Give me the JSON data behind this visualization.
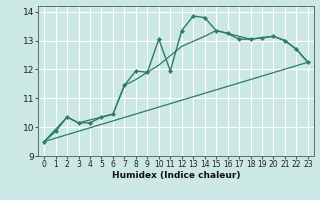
{
  "xlabel": "Humidex (Indice chaleur)",
  "bg_color": "#cce8e4",
  "grid_color": "#ffffff",
  "line_color": "#2d7a6a",
  "xlim": [
    -0.5,
    23.5
  ],
  "ylim": [
    9.0,
    14.2
  ],
  "xticks": [
    0,
    1,
    2,
    3,
    4,
    5,
    6,
    7,
    8,
    9,
    10,
    11,
    12,
    13,
    14,
    15,
    16,
    17,
    18,
    19,
    20,
    21,
    22,
    23
  ],
  "yticks": [
    9,
    10,
    11,
    12,
    13,
    14
  ],
  "line1_x": [
    0,
    1,
    2,
    3,
    4,
    5,
    6,
    7,
    8,
    9,
    10,
    11,
    12,
    13,
    14,
    15,
    16,
    17,
    18,
    19,
    20,
    21,
    22,
    23
  ],
  "line1_y": [
    9.5,
    9.85,
    10.35,
    10.15,
    10.15,
    10.35,
    10.45,
    11.45,
    11.95,
    11.9,
    13.05,
    11.95,
    13.35,
    13.85,
    13.8,
    13.35,
    13.25,
    13.05,
    13.05,
    13.1,
    13.15,
    13.0,
    12.7,
    12.25
  ],
  "line2_x": [
    0,
    23
  ],
  "line2_y": [
    9.5,
    12.25
  ],
  "line3_x": [
    0,
    2,
    3,
    5,
    6,
    7,
    8,
    9,
    10,
    12,
    14,
    15,
    18,
    19,
    20,
    21,
    22,
    23
  ],
  "line3_y": [
    9.5,
    10.35,
    10.15,
    10.35,
    10.45,
    11.45,
    11.65,
    11.9,
    12.15,
    12.8,
    13.15,
    13.35,
    13.05,
    13.1,
    13.15,
    13.0,
    12.7,
    12.25
  ]
}
